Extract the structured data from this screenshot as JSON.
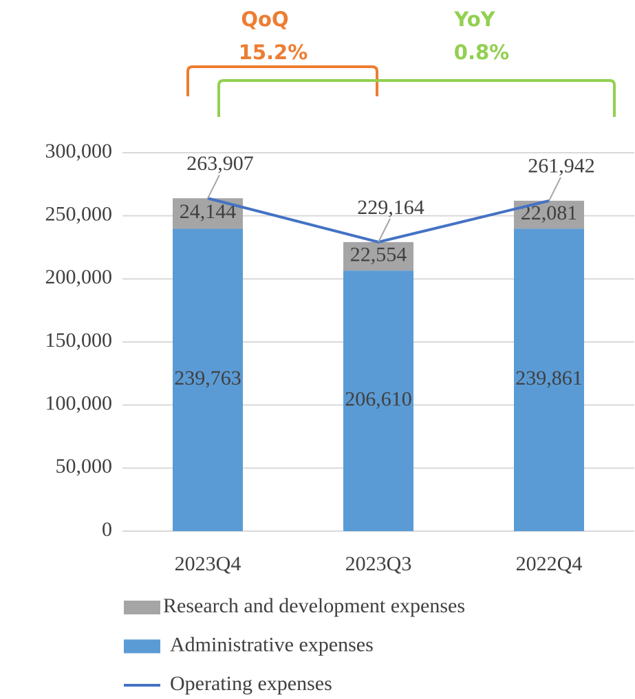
{
  "chart_data": {
    "type": "stacked_bar",
    "categories": [
      "2023Q4",
      "2023Q3",
      "2022Q4"
    ],
    "series": [
      {
        "name": "Research and development expenses",
        "type": "bar",
        "color": "#a5a5a5",
        "values": [
          24144,
          22554,
          22081
        ],
        "value_labels": [
          "24,144",
          "22,554",
          "22,081"
        ]
      },
      {
        "name": "Administrative expenses",
        "type": "bar",
        "color": "#5b9bd5",
        "values": [
          239763,
          206610,
          239861
        ],
        "value_labels": [
          "239,763",
          "206,610",
          "239,861"
        ]
      },
      {
        "name": "Operating expenses",
        "type": "line",
        "color": "#4472c4",
        "values": [
          263907,
          229164,
          261942
        ],
        "value_labels": [
          "263,907",
          "229,164",
          "261,942"
        ]
      }
    ],
    "ylim": [
      0,
      300000
    ],
    "yticks": [
      0,
      {
        "value": 50000,
        "label": "50,000"
      },
      {
        "value": 100000,
        "label": "100,000"
      },
      {
        "value": 150000,
        "label": "150,000"
      },
      {
        "value": 200000,
        "label": "200,000"
      },
      {
        "value": 250000,
        "label": "250,000"
      },
      {
        "value": 300000,
        "label": "300,000"
      }
    ],
    "grid": true,
    "legend": "bottom",
    "annotations": [
      {
        "title": "QoQ",
        "text": "15.2%",
        "color": "#ed7d31"
      },
      {
        "title": "YoY",
        "text": "0.8%",
        "color": "#92d050"
      }
    ]
  }
}
